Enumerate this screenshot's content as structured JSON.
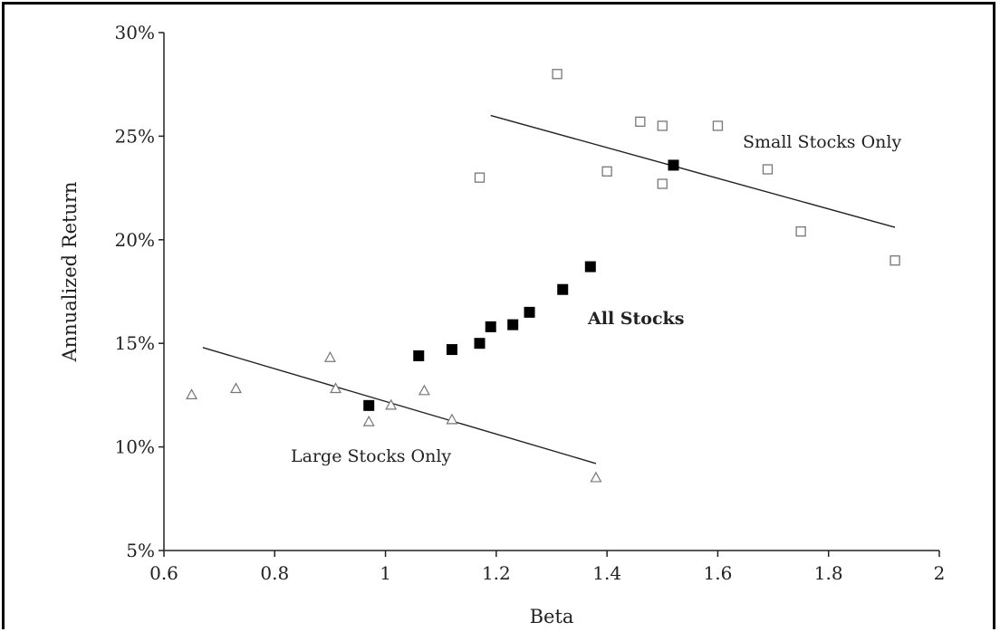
{
  "chart_data": {
    "type": "scatter",
    "xlabel": "Beta",
    "ylabel": "Annualized Return",
    "xlim": [
      0.6,
      2.0
    ],
    "ylim": [
      5,
      30
    ],
    "x_ticks": [
      "0.6",
      "0.8",
      "1",
      "1.2",
      "1.4",
      "1.6",
      "1.8",
      "2"
    ],
    "x_tick_values": [
      0.6,
      0.8,
      1.0,
      1.2,
      1.4,
      1.6,
      1.8,
      2.0
    ],
    "y_ticks": [
      "5%",
      "10%",
      "15%",
      "20%",
      "25%",
      "30%"
    ],
    "y_tick_values": [
      5,
      10,
      15,
      20,
      25,
      30
    ],
    "grid": false,
    "annotations": {
      "small": "Small Stocks Only",
      "all": "All Stocks",
      "large": "Large Stocks Only"
    },
    "series": [
      {
        "marker": "open-square",
        "color": "#777777",
        "points": [
          [
            1.17,
            23.0
          ],
          [
            1.31,
            28.0
          ],
          [
            1.4,
            23.3
          ],
          [
            1.46,
            25.7
          ],
          [
            1.5,
            25.5
          ],
          [
            1.5,
            22.7
          ],
          [
            1.6,
            25.5
          ],
          [
            1.69,
            23.4
          ],
          [
            1.75,
            20.4
          ],
          [
            1.92,
            19.0
          ]
        ]
      },
      {
        "marker": "filled-square",
        "color": "#000000",
        "points": [
          [
            0.97,
            12.0
          ],
          [
            1.06,
            14.4
          ],
          [
            1.12,
            14.7
          ],
          [
            1.17,
            15.0
          ],
          [
            1.19,
            15.8
          ],
          [
            1.23,
            15.9
          ],
          [
            1.26,
            16.5
          ],
          [
            1.32,
            17.6
          ],
          [
            1.37,
            18.7
          ],
          [
            1.52,
            23.6
          ]
        ]
      },
      {
        "marker": "open-triangle",
        "color": "#777777",
        "points": [
          [
            0.65,
            12.5
          ],
          [
            0.73,
            12.8
          ],
          [
            0.9,
            14.3
          ],
          [
            0.91,
            12.8
          ],
          [
            0.97,
            11.2
          ],
          [
            1.01,
            12.0
          ],
          [
            1.07,
            12.7
          ],
          [
            1.12,
            11.3
          ],
          [
            1.38,
            8.5
          ]
        ]
      }
    ],
    "trend_lines": [
      {
        "x": [
          1.19,
          1.92
        ],
        "y": [
          26.0,
          20.6
        ]
      },
      {
        "x": [
          0.67,
          1.38
        ],
        "y": [
          14.8,
          9.2
        ]
      }
    ]
  }
}
